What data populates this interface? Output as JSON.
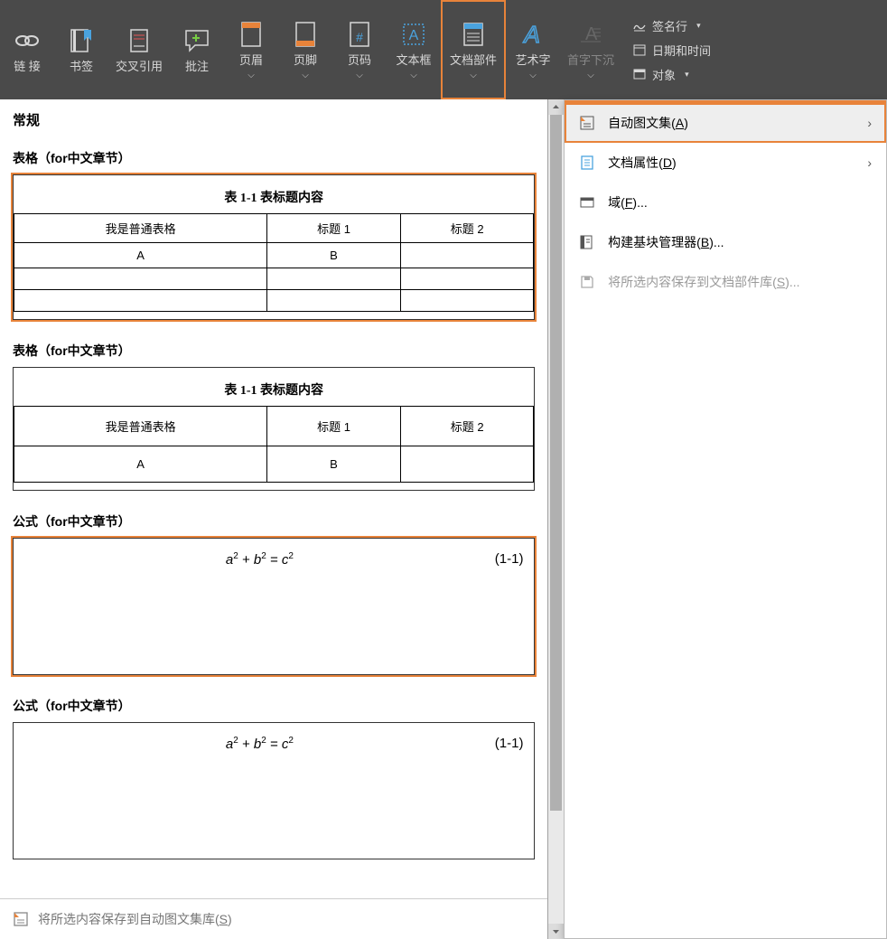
{
  "ribbon": {
    "buttons": [
      {
        "label": "链\n接",
        "has_caret": false
      },
      {
        "label": "书签",
        "has_caret": false
      },
      {
        "label": "交叉引用",
        "has_caret": false
      },
      {
        "label": "批注",
        "has_caret": false
      },
      {
        "label": "页眉",
        "has_caret": true
      },
      {
        "label": "页脚",
        "has_caret": true
      },
      {
        "label": "页码",
        "has_caret": true
      },
      {
        "label": "文本框",
        "has_caret": true
      },
      {
        "label": "文档部件",
        "has_caret": true,
        "active": true
      },
      {
        "label": "艺术字",
        "has_caret": true
      },
      {
        "label": "首字下沉",
        "has_caret": true,
        "disabled": true
      }
    ],
    "side": [
      {
        "label": "签名行",
        "has_caret": true
      },
      {
        "label": "日期和时间"
      },
      {
        "label": "对象",
        "has_caret": true
      }
    ]
  },
  "gallery": {
    "section_header": "常规",
    "items": [
      {
        "header": "表格（for中文章节）",
        "type": "table",
        "highlighted": true,
        "title": "表 1-1 表标题内容",
        "rows": [
          [
            "我是普通表格",
            "标题 1",
            "标题 2"
          ],
          [
            "A",
            "B",
            ""
          ],
          [
            "",
            "",
            ""
          ],
          [
            "",
            "",
            ""
          ]
        ]
      },
      {
        "header": "表格（for中文章节）",
        "type": "table",
        "variant": "v2",
        "title": "表 1-1 表标题内容",
        "rows": [
          [
            "我是普通表格",
            "标题 1",
            "标题 2"
          ],
          [
            "A",
            "B",
            ""
          ]
        ]
      },
      {
        "header": "公式（for中文章节）",
        "type": "formula",
        "highlighted": true,
        "equation_html": "a<sup>2</sup> + b<sup>2</sup> = c<sup>2</sup>",
        "number": "(1-1)"
      },
      {
        "header": "公式（for中文章节）",
        "type": "formula",
        "equation_html": "a<sup>2</sup> + b<sup>2</sup> = c<sup>2</sup>",
        "number": "(1-1)"
      }
    ],
    "footer": "将所选内容保存到自动图文集库(S)",
    "footer_underline": "S"
  },
  "dropdown": {
    "items": [
      {
        "label": "自动图文集(",
        "key": "A",
        "tail": ")",
        "arrow": true,
        "highlighted": true,
        "icon": "autotext"
      },
      {
        "label": "文档属性(",
        "key": "D",
        "tail": ")",
        "arrow": true,
        "icon": "docprop"
      },
      {
        "label": "域(",
        "key": "F",
        "tail": ")...",
        "icon": "field"
      },
      {
        "label": "构建基块管理器(",
        "key": "B",
        "tail": ")...",
        "icon": "blocks"
      },
      {
        "label": "将所选内容保存到文档部件库(",
        "key": "S",
        "tail": ")...",
        "icon": "save",
        "disabled": true
      }
    ]
  },
  "colors": {
    "ribbon_bg": "#4a4a4a",
    "highlight": "#e8833a",
    "text_light": "#d8d8d8",
    "icon_blue": "#4aa3df",
    "icon_orange": "#e8833a"
  }
}
